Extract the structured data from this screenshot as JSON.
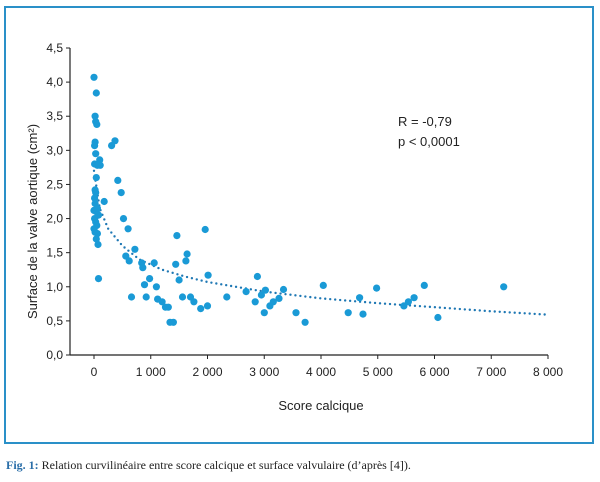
{
  "chart_data": {
    "type": "scatter",
    "xlabel": "Score calcique",
    "ylabel": "Surface de la valve aortique (cm²)",
    "xlim": [
      0,
      8000
    ],
    "ylim": [
      0,
      4.5
    ],
    "xticks": [
      0,
      1000,
      2000,
      3000,
      4000,
      5000,
      6000,
      7000,
      8000
    ],
    "xtick_labels": [
      "0",
      "1 000",
      "2 000",
      "3 000",
      "4 000",
      "5 000",
      "6 000",
      "7 000",
      "8 000"
    ],
    "yticks": [
      0,
      0.5,
      1,
      1.5,
      2,
      2.5,
      3,
      3.5,
      4,
      4.5
    ],
    "ytick_labels": [
      "0,0",
      "0,5",
      "1,0",
      "1,5",
      "2,0",
      "2,5",
      "3,0",
      "3,5",
      "4,0",
      "4,5"
    ],
    "annotations": [
      "R = -0,79",
      "p < 0,0001"
    ],
    "colors": {
      "points": "#1a9ad6",
      "fit": "#1f78b4",
      "border": "#2a90c8"
    },
    "trend": {
      "style": "dotted",
      "points": [
        [
          0,
          2.7
        ],
        [
          100,
          2.15
        ],
        [
          250,
          1.85
        ],
        [
          500,
          1.6
        ],
        [
          800,
          1.4
        ],
        [
          1200,
          1.25
        ],
        [
          1600,
          1.15
        ],
        [
          2000,
          1.07
        ],
        [
          3000,
          0.93
        ],
        [
          4000,
          0.83
        ],
        [
          5000,
          0.76
        ],
        [
          6000,
          0.7
        ],
        [
          7000,
          0.64
        ],
        [
          8000,
          0.59
        ]
      ]
    },
    "points": [
      [
        0,
        4.07
      ],
      [
        40,
        3.84
      ],
      [
        20,
        3.5
      ],
      [
        30,
        3.42
      ],
      [
        50,
        3.38
      ],
      [
        20,
        3.12
      ],
      [
        10,
        3.07
      ],
      [
        30,
        2.95
      ],
      [
        10,
        2.8
      ],
      [
        60,
        2.78
      ],
      [
        100,
        2.86
      ],
      [
        110,
        2.78
      ],
      [
        40,
        2.6
      ],
      [
        20,
        2.42
      ],
      [
        30,
        2.38
      ],
      [
        10,
        2.3
      ],
      [
        20,
        2.22
      ],
      [
        0,
        2.12
      ],
      [
        40,
        2.1
      ],
      [
        60,
        2.15
      ],
      [
        10,
        2.0
      ],
      [
        30,
        1.95
      ],
      [
        50,
        1.9
      ],
      [
        80,
        2.05
      ],
      [
        0,
        1.85
      ],
      [
        20,
        1.8
      ],
      [
        60,
        1.78
      ],
      [
        40,
        1.7
      ],
      [
        70,
        1.62
      ],
      [
        80,
        1.12
      ],
      [
        180,
        2.25
      ],
      [
        310,
        3.07
      ],
      [
        370,
        3.14
      ],
      [
        420,
        2.56
      ],
      [
        480,
        2.38
      ],
      [
        520,
        2.0
      ],
      [
        600,
        1.85
      ],
      [
        560,
        1.45
      ],
      [
        620,
        1.38
      ],
      [
        720,
        1.55
      ],
      [
        840,
        1.35
      ],
      [
        860,
        1.28
      ],
      [
        890,
        1.03
      ],
      [
        660,
        0.85
      ],
      [
        920,
        0.85
      ],
      [
        980,
        1.12
      ],
      [
        1060,
        1.35
      ],
      [
        1100,
        1.0
      ],
      [
        1120,
        0.82
      ],
      [
        1200,
        0.78
      ],
      [
        1260,
        0.7
      ],
      [
        1310,
        0.7
      ],
      [
        1340,
        0.48
      ],
      [
        1400,
        0.48
      ],
      [
        1460,
        1.75
      ],
      [
        1440,
        1.33
      ],
      [
        1500,
        1.1
      ],
      [
        1560,
        0.85
      ],
      [
        1620,
        1.38
      ],
      [
        1640,
        1.48
      ],
      [
        1700,
        0.85
      ],
      [
        1760,
        0.78
      ],
      [
        1880,
        0.68
      ],
      [
        1960,
        1.84
      ],
      [
        2010,
        1.17
      ],
      [
        2000,
        0.72
      ],
      [
        2340,
        0.85
      ],
      [
        2680,
        0.93
      ],
      [
        2840,
        0.78
      ],
      [
        2880,
        1.15
      ],
      [
        2950,
        0.88
      ],
      [
        3000,
        0.62
      ],
      [
        3020,
        0.95
      ],
      [
        3100,
        0.72
      ],
      [
        3160,
        0.78
      ],
      [
        3260,
        0.83
      ],
      [
        3340,
        0.96
      ],
      [
        3560,
        0.62
      ],
      [
        3720,
        0.48
      ],
      [
        4040,
        1.02
      ],
      [
        4480,
        0.62
      ],
      [
        4680,
        0.84
      ],
      [
        4740,
        0.6
      ],
      [
        4980,
        0.98
      ],
      [
        5460,
        0.72
      ],
      [
        5540,
        0.78
      ],
      [
        5640,
        0.84
      ],
      [
        5820,
        1.02
      ],
      [
        6060,
        0.55
      ],
      [
        7220,
        1.0
      ]
    ]
  },
  "caption": {
    "fig_label": "Fig. 1:",
    "text": " Relation curvilinéaire entre score calcique et surface valvulaire (d’après [4])."
  }
}
